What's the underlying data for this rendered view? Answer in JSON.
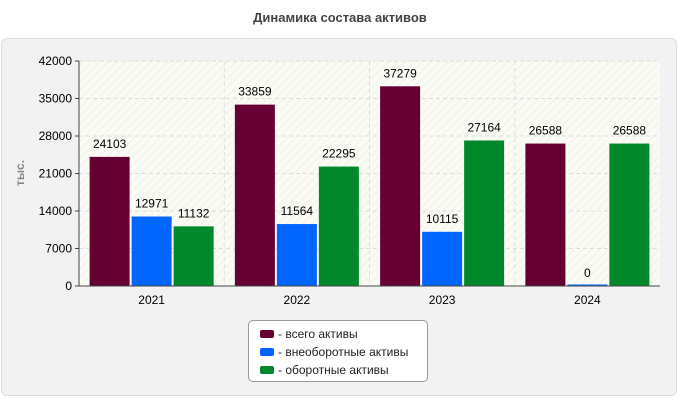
{
  "chart_data": {
    "type": "bar",
    "title": "Динамика состава активов",
    "ylabel": "тыс.",
    "xlabel": "",
    "categories": [
      "2021",
      "2022",
      "2023",
      "2024"
    ],
    "series": [
      {
        "name": "- всего активы",
        "color": "#660033",
        "values": [
          24103,
          33859,
          37279,
          26588
        ]
      },
      {
        "name": "- внеоборотные активы",
        "color": "#0066ff",
        "values": [
          12971,
          11564,
          10115,
          0
        ]
      },
      {
        "name": "- оборотные активы",
        "color": "#00882a",
        "values": [
          11132,
          22295,
          27164,
          26588
        ]
      }
    ],
    "ylim": [
      0,
      42000
    ],
    "yticks": [
      "0",
      "7000",
      "14000",
      "21000",
      "28000",
      "35000",
      "42000"
    ],
    "grid": true,
    "legend_position": "bottom"
  }
}
